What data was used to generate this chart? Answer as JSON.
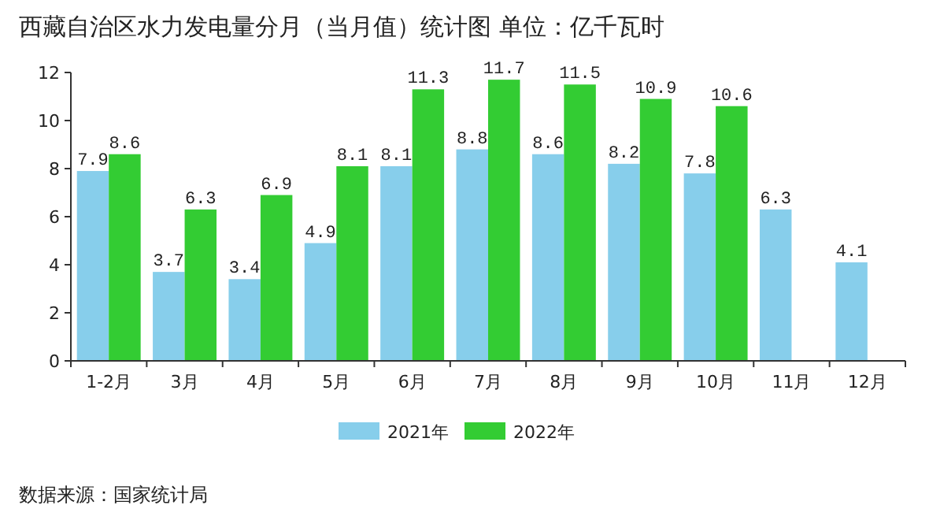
{
  "chart_data": {
    "type": "bar",
    "title": "西藏自治区水力发电量分月（当月值）统计图 单位：亿千瓦时",
    "categories": [
      "1-2月",
      "3月",
      "4月",
      "5月",
      "6月",
      "7月",
      "8月",
      "9月",
      "10月",
      "11月",
      "12月"
    ],
    "series": [
      {
        "name": "2021年",
        "color": "#87ceeb",
        "values": [
          7.9,
          3.7,
          3.4,
          4.9,
          8.1,
          8.8,
          8.6,
          8.2,
          7.8,
          6.3,
          4.1
        ]
      },
      {
        "name": "2022年",
        "color": "#33cc33",
        "values": [
          8.6,
          6.3,
          6.9,
          8.1,
          11.3,
          11.7,
          11.5,
          10.9,
          10.6,
          null,
          null
        ]
      }
    ],
    "ylim": [
      0,
      12
    ],
    "yticks": [
      0,
      2,
      4,
      6,
      8,
      10,
      12
    ],
    "data_labels": true,
    "legend": "bottom",
    "annotations": [
      "数据来源：国家统计局"
    ]
  }
}
